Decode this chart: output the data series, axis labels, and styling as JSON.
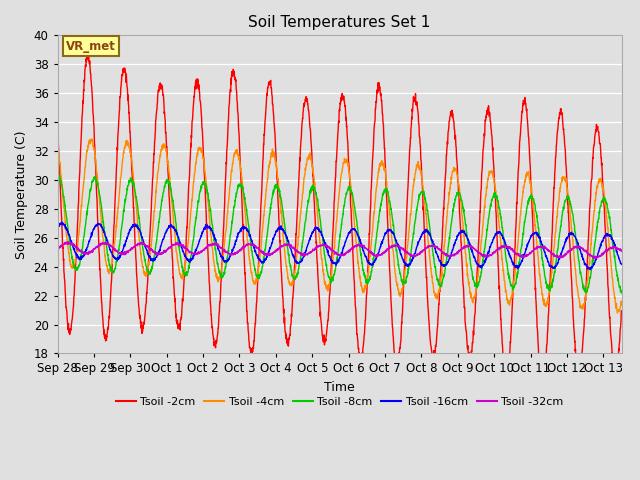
{
  "title": "Soil Temperatures Set 1",
  "xlabel": "Time",
  "ylabel": "Soil Temperature (C)",
  "ylim": [
    18,
    40
  ],
  "background_color": "#e0e0e0",
  "plot_bg_color": "#e0e0e0",
  "annotation_text": "VR_met",
  "annotation_box_color": "#ffff99",
  "annotation_border_color": "#8B6914",
  "series_colors": {
    "Tsoil -2cm": "#ff0000",
    "Tsoil -4cm": "#ff8c00",
    "Tsoil -8cm": "#00cc00",
    "Tsoil -16cm": "#0000ff",
    "Tsoil -32cm": "#cc00cc"
  },
  "xtick_labels": [
    "Sep 28",
    "Sep 29",
    "Sep 30",
    "Oct 1",
    "Oct 2",
    "Oct 3",
    "Oct 4",
    "Oct 5",
    "Oct 6",
    "Oct 7",
    "Oct 8",
    "Oct 9",
    "Oct 10",
    "Oct 11",
    "Oct 12",
    "Oct 13"
  ],
  "num_days": 15.5,
  "points_per_day": 144
}
